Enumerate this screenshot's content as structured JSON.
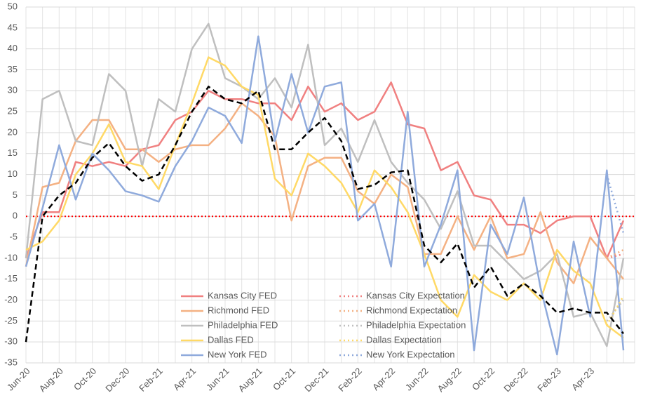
{
  "chart_data": {
    "type": "line",
    "categories": [
      "Jun-20",
      null,
      "Aug-20",
      null,
      "Oct-20",
      null,
      "Dec-20",
      null,
      "Feb-21",
      null,
      "Apr-21",
      null,
      "Jun-21",
      null,
      "Aug-21",
      null,
      "Oct-21",
      null,
      "Dec-21",
      null,
      "Feb-22",
      null,
      "Apr-22",
      null,
      "Jun-22",
      null,
      "Aug-22",
      null,
      "Oct-22",
      null,
      "Dec-22",
      null,
      "Feb-23",
      null,
      "Apr-23",
      null,
      null
    ],
    "series": [
      {
        "name": "Kansas City FED",
        "color": "#f08080",
        "style": "solid",
        "values": [
          -10,
          1,
          1,
          13,
          12,
          13,
          12,
          16,
          17,
          23,
          25,
          30,
          28,
          28,
          27,
          27,
          23,
          31,
          25,
          27,
          23,
          25,
          32,
          22,
          21,
          11,
          13,
          5,
          4,
          -2,
          -2,
          -4,
          -1,
          0,
          0,
          -10,
          -1
        ]
      },
      {
        "name": "Richmond FED",
        "color": "#f4b183",
        "style": "solid",
        "values": [
          -12,
          7,
          8,
          18,
          23,
          23,
          16,
          16,
          13,
          16,
          17,
          17,
          21,
          27,
          24,
          19,
          -1,
          12,
          14,
          14,
          6,
          3,
          10,
          7,
          -9,
          -9,
          0,
          -8,
          0,
          -10,
          -9,
          1,
          -11,
          -16,
          -5,
          -10,
          -15
        ]
      },
      {
        "name": "Philadelphia FED",
        "color": "#bfbfbf",
        "style": "solid",
        "values": [
          -10,
          28,
          30,
          18,
          17,
          34,
          30,
          12,
          28,
          25,
          40,
          46,
          33,
          31,
          28,
          33,
          26,
          41,
          17,
          21,
          13,
          23,
          13,
          8,
          4,
          -3,
          6,
          -7,
          -7,
          -11,
          -15,
          -13,
          -9,
          -24,
          -23,
          -31,
          -10
        ]
      },
      {
        "name": "Dallas FED",
        "color": "#ffd966",
        "style": "solid",
        "values": [
          -8,
          -6,
          -1,
          10,
          15,
          22,
          13,
          12,
          6.5,
          17,
          27,
          38,
          36,
          31,
          29,
          9,
          5,
          15,
          12,
          8,
          1,
          11,
          7,
          1,
          -9,
          -20,
          -24,
          -14,
          -18,
          -20,
          -16,
          -20,
          -8,
          -13,
          -16,
          -26,
          -29
        ]
      },
      {
        "name": "New York FED",
        "color": "#8faadc",
        "style": "solid",
        "values": [
          -12,
          2,
          17,
          4,
          15,
          11,
          6,
          5,
          3.5,
          12,
          18,
          26,
          24,
          17.5,
          43,
          18,
          34,
          20,
          31,
          32,
          -1,
          3,
          -12,
          25,
          -12,
          -2,
          11,
          -32,
          -2,
          -9,
          4.5,
          -17,
          -33,
          -6,
          -24,
          11,
          -32
        ]
      },
      {
        "name": "Kansas City Expectation",
        "color": "#f08080",
        "style": "dotted",
        "values": [
          null,
          null,
          null,
          null,
          null,
          null,
          null,
          null,
          null,
          null,
          null,
          null,
          null,
          null,
          null,
          null,
          null,
          null,
          null,
          null,
          null,
          null,
          null,
          null,
          null,
          null,
          null,
          null,
          null,
          null,
          null,
          null,
          null,
          null,
          null,
          -10,
          -9
        ]
      },
      {
        "name": "Richmond Expectation",
        "color": "#f4b183",
        "style": "dotted",
        "values": [
          null,
          null,
          null,
          null,
          null,
          null,
          null,
          null,
          null,
          null,
          null,
          null,
          null,
          null,
          null,
          null,
          null,
          null,
          null,
          null,
          null,
          null,
          null,
          null,
          null,
          null,
          null,
          null,
          null,
          null,
          null,
          null,
          null,
          null,
          null,
          -10,
          -8
        ]
      },
      {
        "name": "Philadelphia Expectation",
        "color": "#bfbfbf",
        "style": "dotted",
        "values": [
          null,
          null,
          null,
          null,
          null,
          null,
          null,
          null,
          null,
          null,
          null,
          null,
          null,
          null,
          null,
          null,
          null,
          null,
          null,
          null,
          null,
          null,
          null,
          null,
          null,
          null,
          null,
          null,
          null,
          null,
          null,
          null,
          null,
          null,
          null,
          -25,
          -20
        ]
      },
      {
        "name": "Dallas Expectation",
        "color": "#ffd966",
        "style": "dotted",
        "values": [
          null,
          null,
          null,
          null,
          null,
          null,
          null,
          null,
          null,
          null,
          null,
          null,
          null,
          null,
          null,
          null,
          null,
          null,
          null,
          null,
          null,
          null,
          null,
          null,
          null,
          null,
          null,
          null,
          null,
          null,
          null,
          null,
          null,
          null,
          null,
          -26,
          -19
        ]
      },
      {
        "name": "New York Expectation",
        "color": "#8faadc",
        "style": "dotted",
        "values": [
          null,
          null,
          null,
          null,
          null,
          null,
          null,
          null,
          null,
          null,
          null,
          null,
          null,
          null,
          null,
          null,
          null,
          null,
          null,
          null,
          null,
          null,
          null,
          null,
          null,
          null,
          null,
          null,
          null,
          null,
          null,
          null,
          null,
          null,
          null,
          10,
          -4
        ]
      },
      {
        "color": "#000000",
        "style": "dashed",
        "values": [
          -30,
          0,
          5,
          8,
          14,
          17.5,
          12,
          8.5,
          10,
          17,
          25,
          31,
          28,
          27,
          30,
          16,
          16,
          20,
          23.5,
          18,
          6.5,
          7.5,
          10.5,
          11,
          -7,
          -11,
          -6.5,
          -17,
          -12,
          -19,
          -16,
          -19,
          -23,
          -22,
          -23,
          -23,
          -28
        ]
      }
    ],
    "ylim": [
      -35,
      50
    ],
    "yticks": [
      -35,
      -30,
      -25,
      -20,
      -15,
      -10,
      -5,
      0,
      5,
      10,
      15,
      20,
      25,
      30,
      35,
      40,
      45,
      50
    ],
    "grid": true,
    "zero_line_color": "#ff0000",
    "legend": "lower center"
  }
}
